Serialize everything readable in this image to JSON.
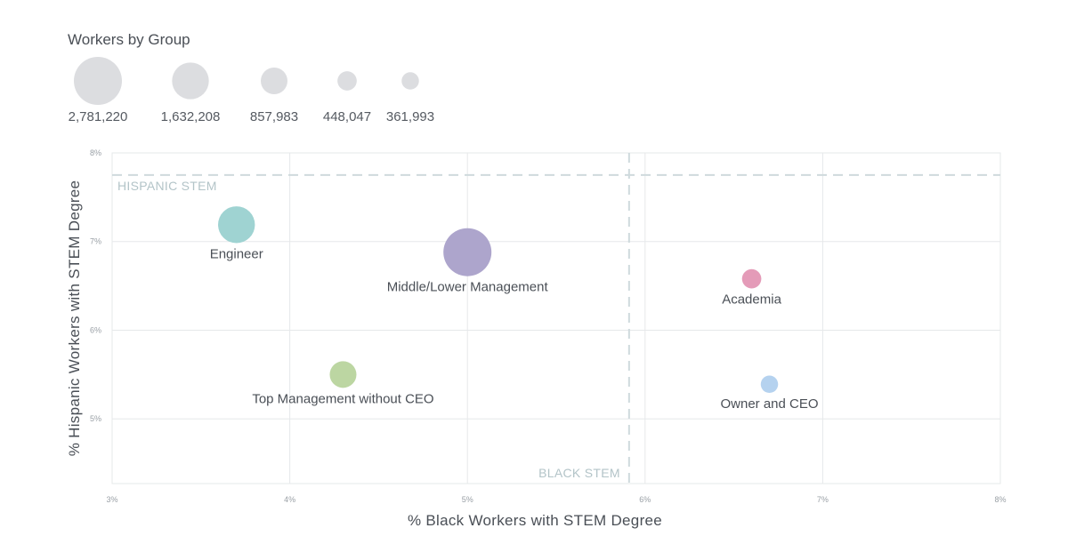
{
  "chart_data": {
    "type": "scatter",
    "title": "",
    "xlabel": "% Black Workers with STEM Degree",
    "ylabel": "% Hispanic Workers with STEM Degree",
    "xlim": [
      3,
      8
    ],
    "ylim": [
      4.27,
      8
    ],
    "x_ticks": [
      3,
      4,
      5,
      6,
      7,
      8
    ],
    "y_ticks": [
      5,
      6,
      7,
      8
    ],
    "x_tick_labels": [
      "3%",
      "4%",
      "5%",
      "6%",
      "7%",
      "8%"
    ],
    "y_tick_labels": [
      "5%",
      "6%",
      "7%",
      "8%"
    ],
    "grid": true,
    "size_legend": {
      "title": "Workers by Group",
      "entries": [
        {
          "label": "2,781,220",
          "value": 2781220
        },
        {
          "label": "1,632,208",
          "value": 1632208
        },
        {
          "label": "857,983",
          "value": 857983
        },
        {
          "label": "448,047",
          "value": 448047
        },
        {
          "label": "361,993",
          "value": 361993
        }
      ]
    },
    "reference_lines": [
      {
        "axis": "y",
        "value": 7.75,
        "label": "HISPANIC STEM"
      },
      {
        "axis": "x",
        "value": 5.91,
        "label": "BLACK STEM"
      }
    ],
    "points": [
      {
        "label": "Engineer",
        "x": 3.7,
        "y": 7.19,
        "size": 1632208,
        "color": "#9fd3d2"
      },
      {
        "label": "Middle/Lower Management",
        "x": 5.0,
        "y": 6.88,
        "size": 2781220,
        "color": "#ada5cc"
      },
      {
        "label": "Academia",
        "x": 6.6,
        "y": 6.58,
        "size": 448047,
        "color": "#e49bb8"
      },
      {
        "label": "Top Management without CEO",
        "x": 4.3,
        "y": 5.5,
        "size": 857983,
        "color": "#bcd6a2"
      },
      {
        "label": "Owner and CEO",
        "x": 6.7,
        "y": 5.39,
        "size": 361993,
        "color": "#b5d2ef"
      }
    ]
  }
}
